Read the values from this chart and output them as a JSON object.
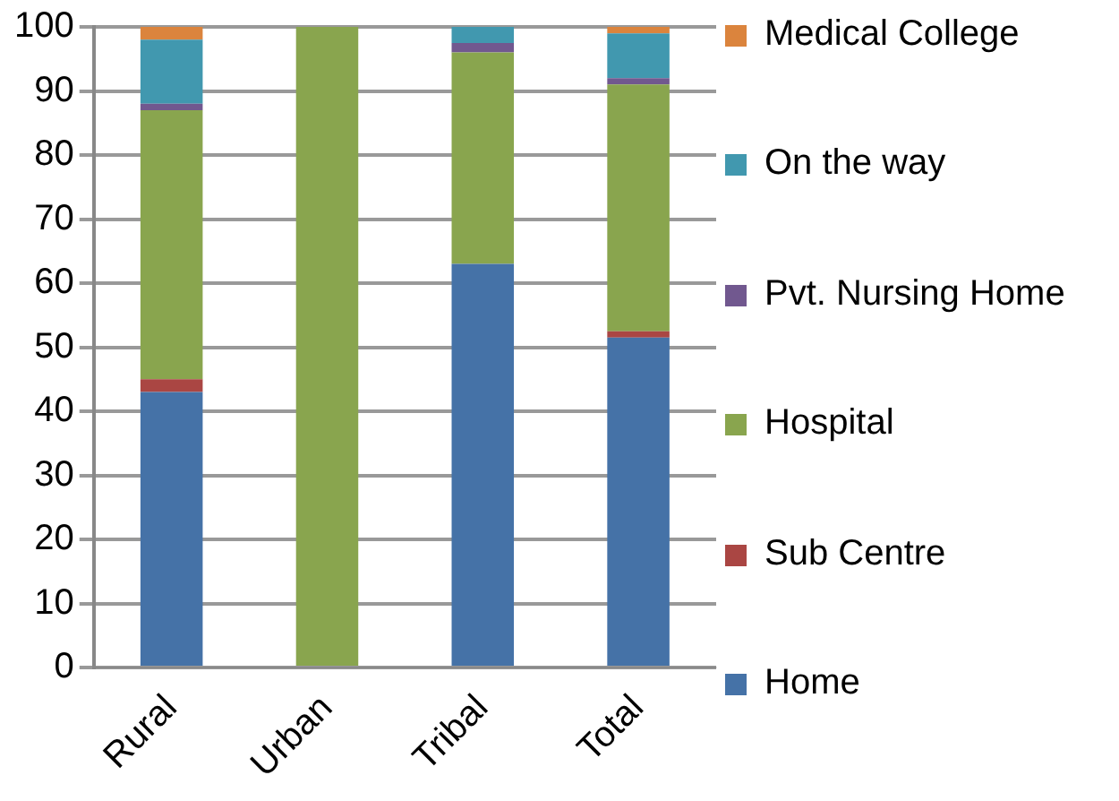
{
  "chart_data": {
    "type": "bar",
    "stacked": true,
    "categories": [
      "Rural",
      "Urban",
      "Tribal",
      "Total"
    ],
    "series": [
      {
        "name": "Home",
        "color": "#4572a7",
        "values": [
          43,
          0,
          63,
          51.5
        ]
      },
      {
        "name": "Sub Centre",
        "color": "#aa4643",
        "values": [
          2,
          0,
          0,
          1
        ]
      },
      {
        "name": "Hospital",
        "color": "#89a54e",
        "values": [
          42,
          100,
          33,
          38.5
        ]
      },
      {
        "name": "Pvt. Nursing Home",
        "color": "#71588f",
        "values": [
          1,
          0,
          1.5,
          1
        ]
      },
      {
        "name": "On the way",
        "color": "#4198af",
        "values": [
          10,
          0,
          2.5,
          7
        ]
      },
      {
        "name": "Medical College",
        "color": "#db843d",
        "values": [
          2,
          0,
          0,
          1
        ]
      }
    ],
    "ylim": [
      0,
      100
    ],
    "yticks": [
      0,
      10,
      20,
      30,
      40,
      50,
      60,
      70,
      80,
      90,
      100
    ],
    "grid": "y",
    "legend": "right"
  }
}
